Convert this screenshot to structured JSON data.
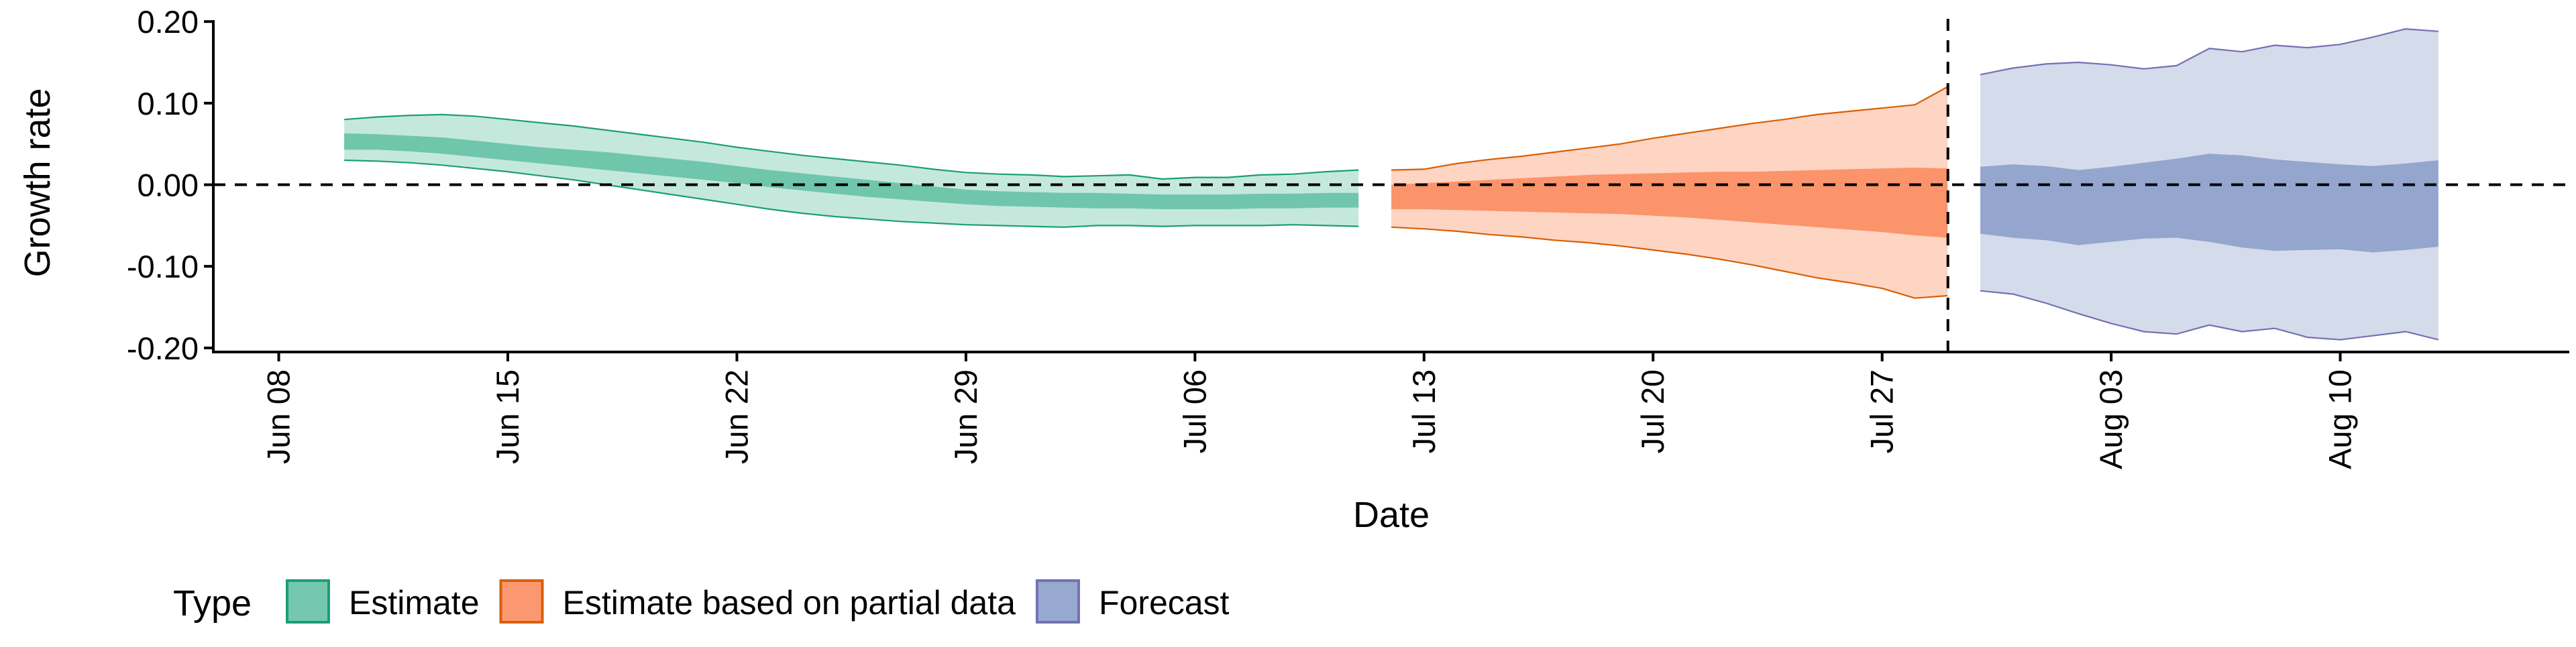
{
  "chart_data": {
    "type": "area",
    "xlabel": "Date",
    "ylabel": "Growth rate",
    "x_ticks": [
      "Jun 08",
      "Jun 15",
      "Jun 22",
      "Jun 29",
      "Jul 06",
      "Jul 13",
      "Jul 20",
      "Jul 27",
      "Aug 03",
      "Aug 10"
    ],
    "x_range": [
      "2020-06-06",
      "2020-08-17"
    ],
    "y_ticks": [
      "0.20",
      "0.10",
      "0.00",
      "-0.10",
      "-0.20"
    ],
    "ylim": [
      -0.205,
      0.21
    ],
    "reference_lines": {
      "y": 0.0,
      "x": "2020-07-29"
    },
    "legend": {
      "title": "Type",
      "position": "bottom-left"
    },
    "series": [
      {
        "name": "Estimate",
        "color": "#1b9e77",
        "fill": "#66c2a5",
        "x": [
          "2020-06-10",
          "2020-06-11",
          "2020-06-12",
          "2020-06-13",
          "2020-06-14",
          "2020-06-15",
          "2020-06-16",
          "2020-06-17",
          "2020-06-18",
          "2020-06-19",
          "2020-06-20",
          "2020-06-21",
          "2020-06-22",
          "2020-06-23",
          "2020-06-24",
          "2020-06-25",
          "2020-06-26",
          "2020-06-27",
          "2020-06-28",
          "2020-06-29",
          "2020-06-30",
          "2020-07-01",
          "2020-07-02",
          "2020-07-03",
          "2020-07-04",
          "2020-07-05",
          "2020-07-06",
          "2020-07-07",
          "2020-07-08",
          "2020-07-09",
          "2020-07-10",
          "2020-07-11"
        ],
        "upper_90": [
          0.08,
          0.083,
          0.085,
          0.086,
          0.084,
          0.08,
          0.076,
          0.072,
          0.067,
          0.062,
          0.057,
          0.052,
          0.046,
          0.041,
          0.036,
          0.032,
          0.028,
          0.024,
          0.019,
          0.015,
          0.013,
          0.012,
          0.01,
          0.011,
          0.012,
          0.007,
          0.009,
          0.009,
          0.012,
          0.013,
          0.016,
          0.018
        ],
        "upper_50": [
          0.063,
          0.062,
          0.06,
          0.058,
          0.054,
          0.05,
          0.046,
          0.043,
          0.04,
          0.036,
          0.032,
          0.028,
          0.023,
          0.018,
          0.014,
          0.01,
          0.006,
          0.002,
          -0.002,
          -0.006,
          -0.008,
          -0.009,
          -0.01,
          -0.01,
          -0.011,
          -0.012,
          -0.012,
          -0.012,
          -0.011,
          -0.011,
          -0.01,
          -0.01
        ],
        "lower_50": [
          0.043,
          0.043,
          0.041,
          0.038,
          0.034,
          0.03,
          0.026,
          0.022,
          0.018,
          0.014,
          0.01,
          0.006,
          0.002,
          -0.003,
          -0.007,
          -0.011,
          -0.015,
          -0.018,
          -0.021,
          -0.024,
          -0.026,
          -0.027,
          -0.028,
          -0.029,
          -0.029,
          -0.03,
          -0.03,
          -0.03,
          -0.029,
          -0.029,
          -0.028,
          -0.028
        ],
        "lower_90": [
          0.03,
          0.029,
          0.027,
          0.024,
          0.02,
          0.016,
          0.011,
          0.006,
          0.0,
          -0.006,
          -0.012,
          -0.018,
          -0.024,
          -0.03,
          -0.035,
          -0.039,
          -0.042,
          -0.045,
          -0.047,
          -0.049,
          -0.05,
          -0.051,
          -0.052,
          -0.05,
          -0.05,
          -0.051,
          -0.05,
          -0.05,
          -0.05,
          -0.049,
          -0.05,
          -0.051
        ]
      },
      {
        "name": "Estimate based on partial data",
        "color": "#d95f02",
        "fill": "#fc8d62",
        "x": [
          "2020-07-12",
          "2020-07-13",
          "2020-07-14",
          "2020-07-15",
          "2020-07-16",
          "2020-07-17",
          "2020-07-18",
          "2020-07-19",
          "2020-07-20",
          "2020-07-21",
          "2020-07-22",
          "2020-07-23",
          "2020-07-24",
          "2020-07-25",
          "2020-07-26",
          "2020-07-27",
          "2020-07-28",
          "2020-07-29"
        ],
        "upper_90": [
          0.018,
          0.019,
          0.026,
          0.031,
          0.035,
          0.04,
          0.045,
          0.05,
          0.057,
          0.063,
          0.069,
          0.075,
          0.08,
          0.086,
          0.09,
          0.094,
          0.098,
          0.12
        ],
        "upper_50": [
          0.0,
          0.002,
          0.004,
          0.006,
          0.008,
          0.01,
          0.012,
          0.013,
          0.014,
          0.015,
          0.016,
          0.016,
          0.017,
          0.018,
          0.019,
          0.02,
          0.021,
          0.02
        ],
        "lower_50": [
          -0.03,
          -0.03,
          -0.031,
          -0.032,
          -0.033,
          -0.034,
          -0.035,
          -0.036,
          -0.038,
          -0.04,
          -0.043,
          -0.046,
          -0.049,
          -0.052,
          -0.055,
          -0.058,
          -0.062,
          -0.065
        ],
        "lower_90": [
          -0.052,
          -0.054,
          -0.057,
          -0.061,
          -0.064,
          -0.068,
          -0.071,
          -0.075,
          -0.08,
          -0.085,
          -0.091,
          -0.098,
          -0.106,
          -0.114,
          -0.12,
          -0.127,
          -0.139,
          -0.136
        ]
      },
      {
        "name": "Forecast",
        "color": "#7570b3",
        "fill": "#8da0cb",
        "x": [
          "2020-07-30",
          "2020-07-31",
          "2020-08-01",
          "2020-08-02",
          "2020-08-03",
          "2020-08-04",
          "2020-08-05",
          "2020-08-06",
          "2020-08-07",
          "2020-08-08",
          "2020-08-09",
          "2020-08-10",
          "2020-08-11",
          "2020-08-12",
          "2020-08-13"
        ],
        "upper_90": [
          0.135,
          0.143,
          0.148,
          0.15,
          0.147,
          0.142,
          0.146,
          0.167,
          0.163,
          0.171,
          0.168,
          0.172,
          0.181,
          0.191,
          0.188
        ],
        "upper_50": [
          0.022,
          0.025,
          0.023,
          0.018,
          0.022,
          0.027,
          0.032,
          0.038,
          0.036,
          0.031,
          0.028,
          0.025,
          0.023,
          0.026,
          0.03
        ],
        "lower_50": [
          -0.06,
          -0.065,
          -0.068,
          -0.074,
          -0.07,
          -0.066,
          -0.065,
          -0.07,
          -0.077,
          -0.081,
          -0.08,
          -0.079,
          -0.083,
          -0.08,
          -0.076
        ],
        "lower_90": [
          -0.13,
          -0.134,
          -0.145,
          -0.158,
          -0.17,
          -0.18,
          -0.183,
          -0.172,
          -0.18,
          -0.176,
          -0.187,
          -0.19,
          -0.185,
          -0.18,
          -0.19
        ]
      }
    ]
  }
}
